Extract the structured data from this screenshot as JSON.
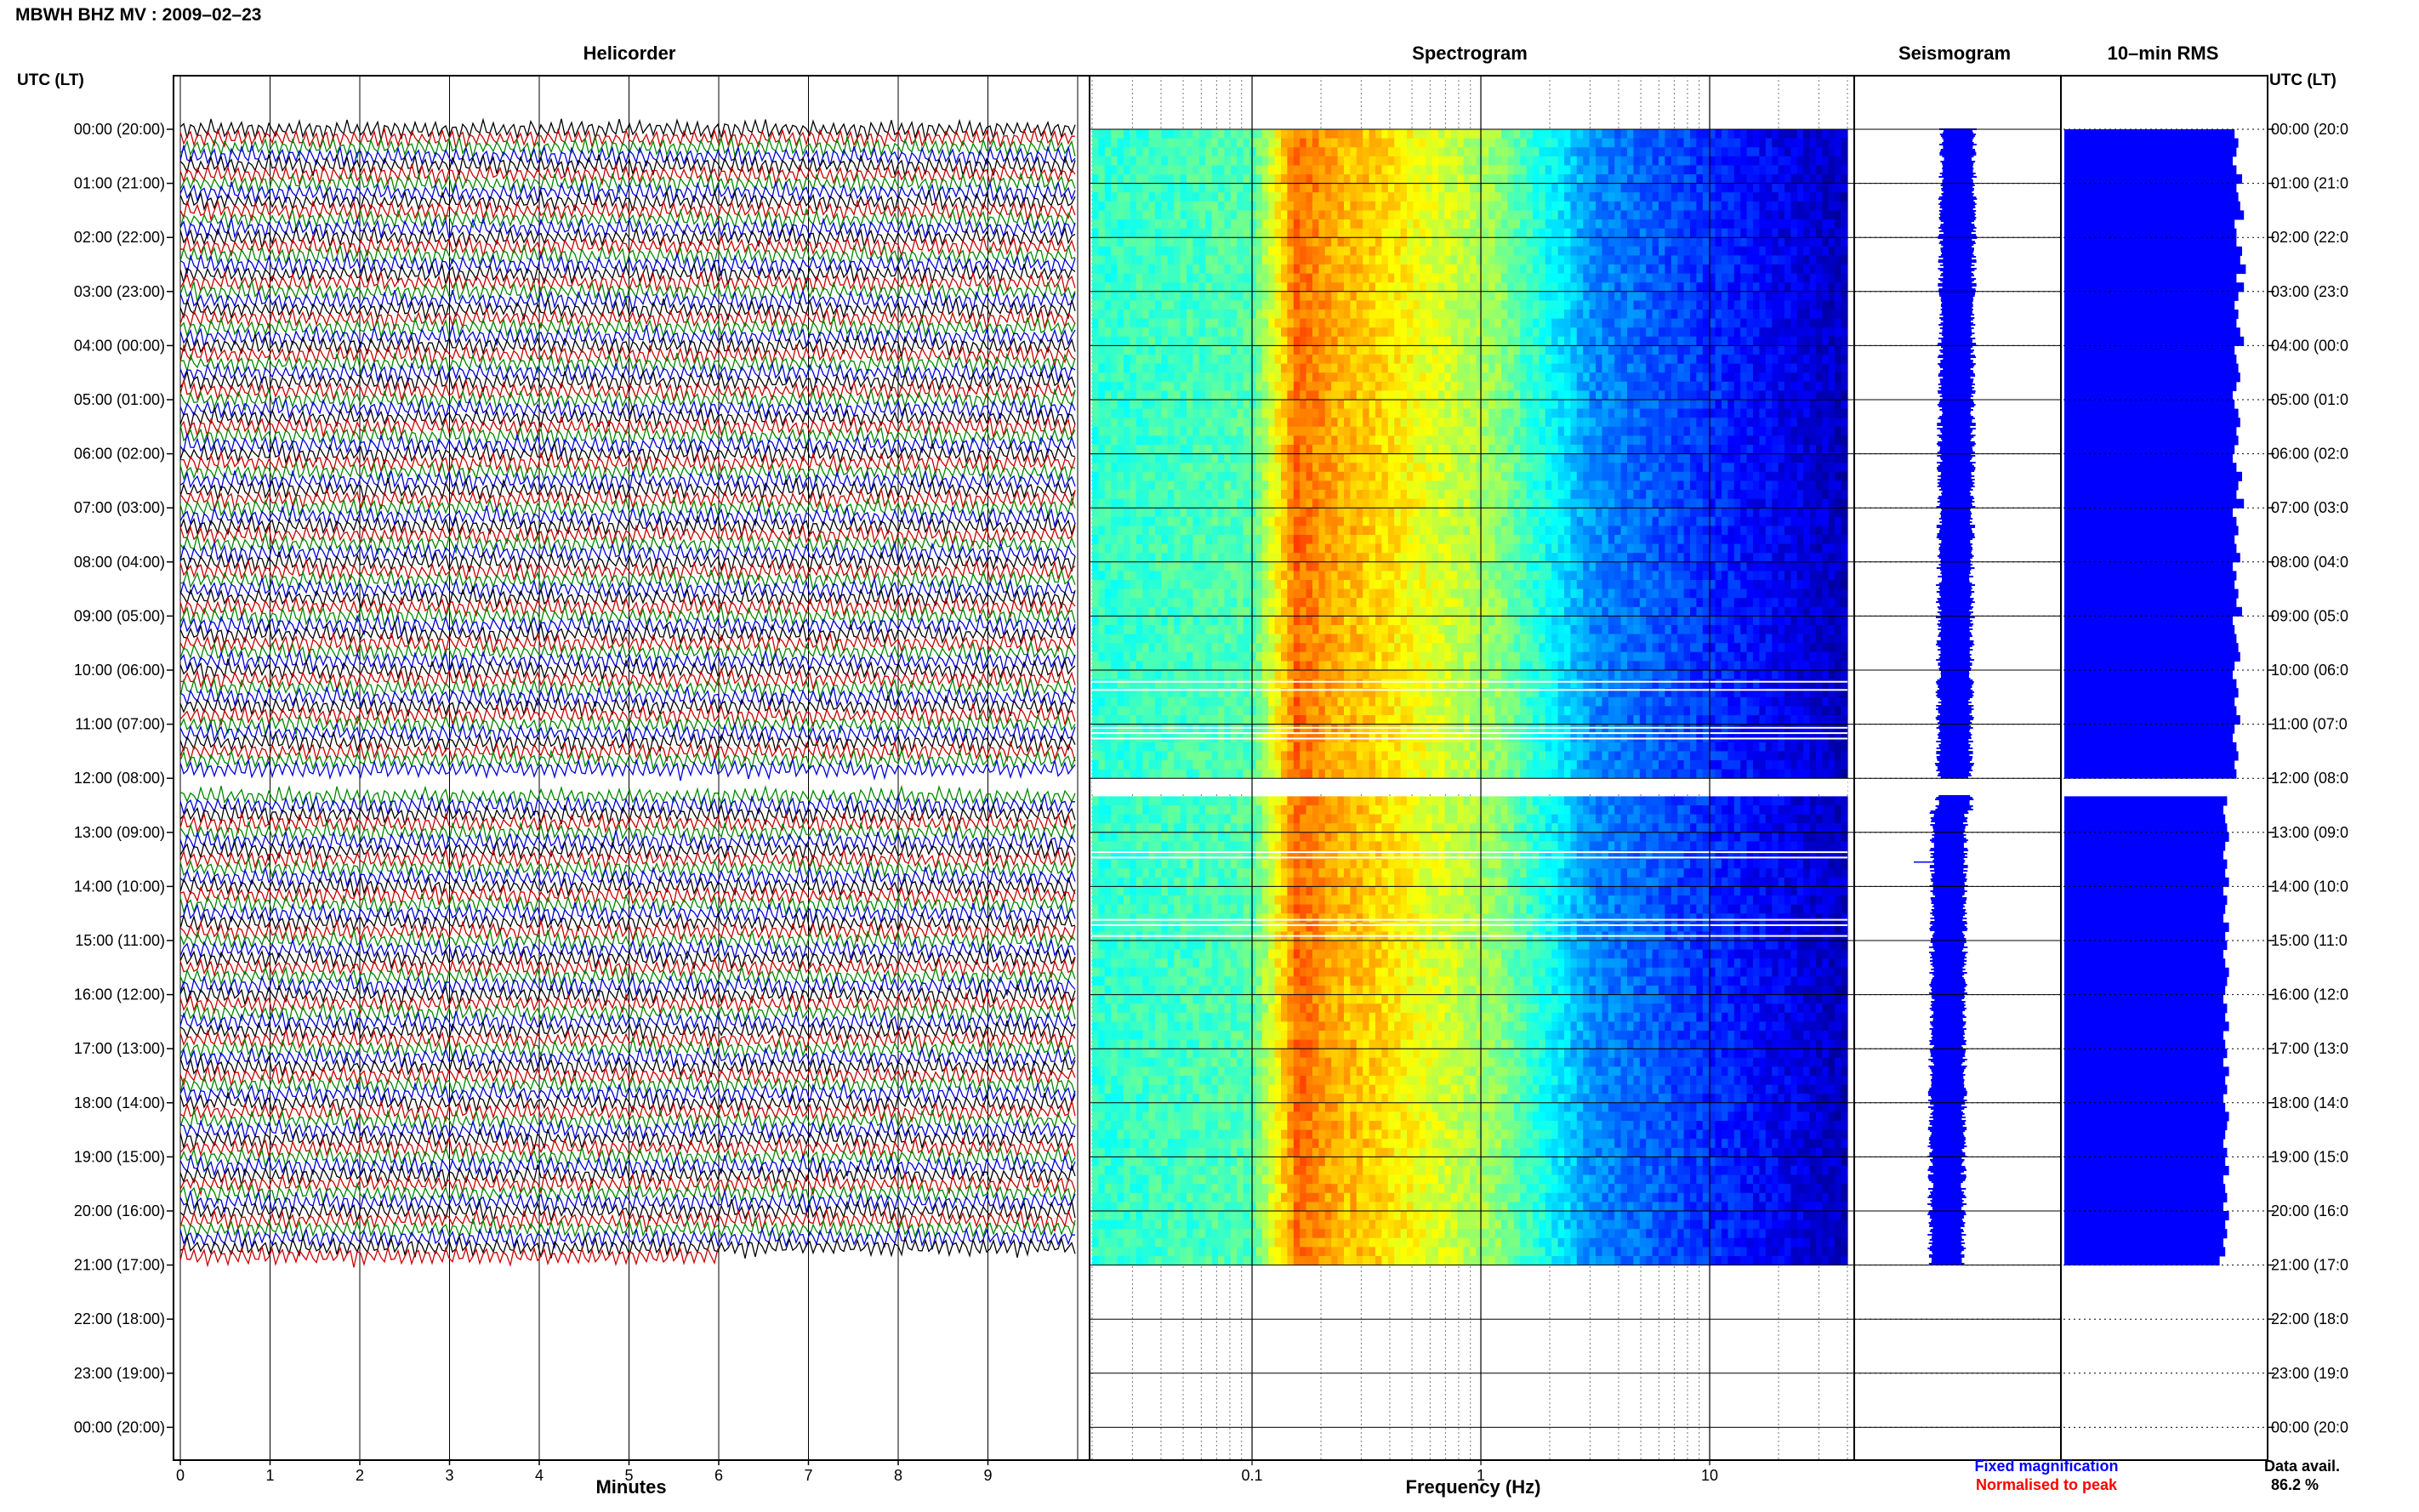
{
  "header": {
    "station_title": "MBWH BHZ MV : 2009–02–23",
    "utc_lt_label": "UTC (LT)",
    "utc_lt_label_right": "UTC (LT)"
  },
  "panels": {
    "helicorder_title": "Helicorder",
    "spectrogram_title": "Spectrogram",
    "seismogram_title": "Seismogram",
    "rms_title": "10–min RMS"
  },
  "time_labels_left": [
    "00:00 (20:00)",
    "01:00 (21:00)",
    "02:00 (22:00)",
    "03:00 (23:00)",
    "04:00 (00:00)",
    "05:00 (01:00)",
    "06:00 (02:00)",
    "07:00 (03:00)",
    "08:00 (04:00)",
    "09:00 (05:00)",
    "10:00 (06:00)",
    "11:00 (07:00)",
    "12:00 (08:00)",
    "13:00 (09:00)",
    "14:00 (10:00)",
    "15:00 (11:00)",
    "16:00 (12:00)",
    "17:00 (13:00)",
    "18:00 (14:00)",
    "19:00 (15:00)",
    "20:00 (16:00)",
    "21:00 (17:00)",
    "22:00 (18:00)",
    "23:00 (19:00)",
    "00:00 (20:00)"
  ],
  "time_labels_right": [
    "00:00 (20:0",
    "01:00 (21:0",
    "02:00 (22:0",
    "03:00 (23:0",
    "04:00 (00:0",
    "05:00 (01:0",
    "06:00 (02:0",
    "07:00 (03:0",
    "08:00 (04:0",
    "09:00 (05:0",
    "10:00 (06:0",
    "11:00 (07:0",
    "12:00 (08:0",
    "13:00 (09:0",
    "14:00 (10:0",
    "15:00 (11:0",
    "16:00 (12:0",
    "17:00 (13:0",
    "18:00 (14:0",
    "19:00 (15:0",
    "20:00 (16:0",
    "21:00 (17:0",
    "22:00 (18:0",
    "23:00 (19:0",
    "00:00 (20:0"
  ],
  "footer": {
    "minutes_label": "Minutes",
    "frequency_label": "Frequency (Hz)",
    "fixed_magnification": "Fixed magnification",
    "normalised_to_peak": "Normalised to peak",
    "data_avail_label": "Data avail.",
    "data_avail_value": "86.2 %"
  },
  "colors": {
    "trace_palette": [
      "#000000",
      "#cc0000",
      "#008800",
      "#0000dd"
    ],
    "seismogram": "#0000ff",
    "rms_bars": "#0000ff",
    "fixed_magnification_text": "#0000ff",
    "normalised_text": "#ff0000"
  },
  "chart_data": [
    {
      "type": "line",
      "title": "Helicorder",
      "xlabel": "Minutes",
      "x_ticks": [
        "0",
        "1",
        "2",
        "3",
        "4",
        "5",
        "6",
        "7",
        "8",
        "9"
      ],
      "xlim": [
        0,
        10
      ],
      "rows_per_hour": 6,
      "minutes_per_row": 10,
      "trace_color_cycle": [
        "black",
        "red",
        "green",
        "blue"
      ],
      "data_start": "00:00",
      "data_end": "21:00",
      "gap_hours": [
        12.0,
        12.25
      ]
    },
    {
      "type": "heatmap",
      "title": "Spectrogram",
      "xlabel": "Frequency (Hz)",
      "x_scale": "log",
      "x_ticks": [
        "0.1",
        "1",
        "10"
      ],
      "xlim": [
        0.02,
        40
      ],
      "colormap": "jet",
      "dominant_band_hz": [
        0.15,
        0.3
      ],
      "gap_hours": [
        12.0,
        12.25
      ]
    },
    {
      "type": "line",
      "title": "Seismogram",
      "legend": [
        "Fixed magnification",
        "Normalised to peak"
      ],
      "gap_hours": [
        12.0,
        12.25
      ]
    },
    {
      "type": "bar",
      "title": "10–min RMS",
      "orientation": "horizontal",
      "relative_values": [
        0.91,
        0.93,
        0.92,
        0.9,
        0.92,
        0.95,
        0.92,
        0.93,
        0.94,
        0.96,
        0.91,
        0.92,
        0.92,
        0.95,
        0.94,
        0.97,
        0.92,
        0.96,
        0.93,
        0.91,
        0.93,
        0.92,
        0.94,
        0.96,
        0.91,
        0.92,
        0.93,
        0.94,
        0.92,
        0.9,
        0.91,
        0.93,
        0.94,
        0.92,
        0.93,
        0.91,
        0.9,
        0.92,
        0.95,
        0.93,
        0.92,
        0.96,
        0.9,
        0.92,
        0.93,
        0.91,
        0.92,
        0.94,
        0.9,
        0.92,
        0.91,
        0.93,
        0.92,
        0.95,
        0.9,
        0.91,
        0.92,
        0.93,
        0.94,
        0.91,
        0.9,
        0.92,
        0.93,
        0.91,
        0.92,
        0.94,
        0.91,
        0.9,
        0.92,
        0.93,
        0.91,
        0.92,
        0.0,
        0.0,
        0.87,
        0.85,
        0.86,
        0.87,
        0.88,
        0.86,
        0.85,
        0.87,
        0.86,
        0.88,
        0.85,
        0.87,
        0.86,
        0.85,
        0.88,
        0.86,
        0.87,
        0.85,
        0.86,
        0.88,
        0.87,
        0.86,
        0.85,
        0.87,
        0.86,
        0.88,
        0.85,
        0.86,
        0.87,
        0.85,
        0.88,
        0.86,
        0.87,
        0.85,
        0.86,
        0.88,
        0.87,
        0.86,
        0.85,
        0.87,
        0.86,
        0.88,
        0.85,
        0.86,
        0.87,
        0.85,
        0.88,
        0.86,
        0.87,
        0.85,
        0.86,
        0.83
      ]
    }
  ]
}
